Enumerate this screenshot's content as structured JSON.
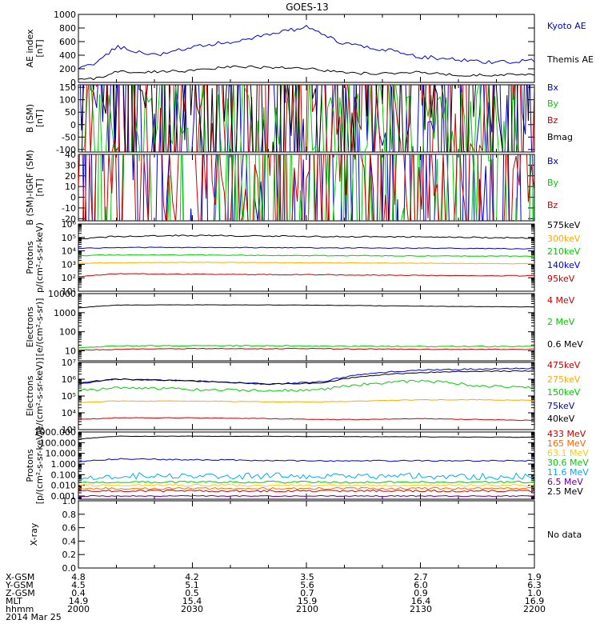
{
  "title": "GOES-13",
  "date_label": "2014 Mar 25",
  "orbit_table": {
    "row_labels": [
      "X-GSM",
      "Y-GSM",
      "Z-GSM",
      "MLT",
      "hhmm"
    ],
    "columns": [
      [
        "4.8",
        "4.5",
        "0.4",
        "14.9",
        "2000"
      ],
      [
        "4.2",
        "5.1",
        "0.5",
        "15.4",
        "2030"
      ],
      [
        "3.5",
        "5.6",
        "0.7",
        "15.9",
        "2100"
      ],
      [
        "2.7",
        "6.0",
        "0.9",
        "16.4",
        "2130"
      ],
      [
        "1.9",
        "6.3",
        "1.0",
        "16.9",
        "2200"
      ]
    ]
  },
  "chart_data": [
    {
      "type": "line",
      "ylabel": [
        "AE index",
        "[nT]"
      ],
      "scale": "linear",
      "ylim": [
        0,
        1000
      ],
      "yticks": [
        0,
        200,
        400,
        600,
        800,
        1000
      ],
      "ytick_labels": [
        "0",
        "200",
        "400",
        "600",
        "800",
        "1000"
      ],
      "x": [
        0,
        5,
        10,
        20,
        30,
        40,
        60,
        70,
        80,
        90,
        100,
        110,
        120
      ],
      "series": [
        {
          "name": "Kyoto AE",
          "color": "#0000cc",
          "noise": 0.03,
          "values": [
            190,
            300,
            530,
            400,
            520,
            600,
            810,
            560,
            490,
            380,
            330,
            290,
            320
          ]
        },
        {
          "name": "Themis AE",
          "color": "#000000",
          "noise": 0.02,
          "values": [
            40,
            60,
            150,
            160,
            170,
            230,
            210,
            140,
            130,
            150,
            100,
            110,
            110
          ]
        }
      ]
    },
    {
      "type": "line",
      "ylabel": [
        "B (SM)",
        "[nT]"
      ],
      "scale": "linear",
      "ylim": [
        -110,
        160
      ],
      "yticks": [
        -100,
        -50,
        0,
        50,
        100,
        150
      ],
      "ytick_labels": [
        "-100",
        "-50",
        "0",
        "50",
        "100",
        "150"
      ],
      "x": [
        0,
        4,
        10,
        30,
        60,
        90,
        120
      ],
      "series": [
        {
          "name": "Bx",
          "color": "#0000cc",
          "noise": 2,
          "values": [
            -40,
            -30,
            -28,
            -22,
            -18,
            -10,
            -5
          ]
        },
        {
          "name": "By",
          "color": "#00cc00",
          "noise": 1,
          "values": [
            -55,
            -50,
            -50,
            -50,
            -52,
            -53,
            -55
          ]
        },
        {
          "name": "Bz",
          "color": "#cc0000",
          "noise": 2,
          "values": [
            100,
            130,
            120,
            120,
            118,
            112,
            108
          ]
        },
        {
          "name": "Bmag",
          "color": "#000000",
          "noise": 2,
          "values": [
            115,
            140,
            135,
            135,
            135,
            128,
            122
          ]
        }
      ]
    },
    {
      "type": "line",
      "ylabel": [
        "B (SM)-IGRF (SM)",
        "[nT]"
      ],
      "scale": "linear",
      "ylim": [
        -22,
        40
      ],
      "yticks": [
        -20,
        -10,
        0,
        10,
        20,
        30,
        40
      ],
      "ytick_labels": [
        "-20",
        "-10",
        "0",
        "10",
        "20",
        "30",
        "40"
      ],
      "x": [
        0,
        3,
        6,
        15,
        30,
        45,
        60,
        75,
        90,
        95,
        105,
        120
      ],
      "series": [
        {
          "name": "Bx",
          "color": "#0000cc",
          "noise": 3,
          "values": [
            -2,
            10,
            5,
            3,
            5,
            6,
            8,
            8,
            8,
            12,
            5,
            5
          ]
        },
        {
          "name": "By",
          "color": "#00cc00",
          "noise": 2.5,
          "values": [
            -8,
            0,
            -5,
            -8,
            -5,
            -3,
            0,
            -2,
            0,
            -2,
            -4,
            -3
          ]
        },
        {
          "name": "Bz",
          "color": "#cc0000",
          "noise": 1.5,
          "values": [
            15,
            28,
            35,
            28,
            27,
            26,
            30,
            30,
            25,
            15,
            12,
            12
          ]
        }
      ]
    },
    {
      "type": "line",
      "ylabel": [
        "Protons",
        "p/(cm²-s-sr-keV)"
      ],
      "scale": "log",
      "ylim": [
        10,
        1000000
      ],
      "yticks": [
        10,
        100,
        1000,
        10000,
        100000,
        1000000
      ],
      "ytick_labels": [
        "10¹",
        "10²",
        "10³",
        "10⁴",
        "10⁵",
        "10⁶"
      ],
      "x": [
        0,
        10,
        30,
        60,
        90,
        120
      ],
      "series": [
        {
          "name": "575keV",
          "color": "#000000",
          "noise": 0.05,
          "values": [
            70000,
            120000,
            140000,
            120000,
            110000,
            90000
          ]
        },
        {
          "name": "300keV",
          "color": "#ffaa00",
          "noise": 0.02,
          "values": [
            1200,
            1300,
            1400,
            1300,
            1200,
            1100
          ]
        },
        {
          "name": "210keV",
          "color": "#00cc00",
          "noise": 0.03,
          "values": [
            4500,
            5000,
            5000,
            4500,
            4300,
            4000
          ]
        },
        {
          "name": "140keV",
          "color": "#0000cc",
          "noise": 0.03,
          "values": [
            15000,
            18000,
            18000,
            17000,
            16000,
            14000
          ]
        },
        {
          "name": "95keV",
          "color": "#cc0000",
          "noise": 0.03,
          "values": [
            120,
            200,
            180,
            170,
            150,
            140
          ]
        }
      ]
    },
    {
      "type": "line",
      "ylabel": [
        "Electrons",
        "[e/(cm²-s-sr)]"
      ],
      "scale": "log",
      "ylim": [
        3,
        10000
      ],
      "yticks": [
        10,
        100,
        1000,
        10000
      ],
      "ytick_labels": [
        "10",
        "100",
        "1000",
        "10000"
      ],
      "x": [
        0,
        10,
        30,
        60,
        90,
        120
      ],
      "series": [
        {
          "name": "4 MeV",
          "color": "#cc0000",
          "noise": 0.02,
          "values": [
            11,
            12,
            13,
            13,
            12,
            12
          ]
        },
        {
          "name": "2 MeV",
          "color": "#00cc00",
          "noise": 0.03,
          "values": [
            15,
            18,
            19,
            18,
            17,
            17
          ]
        },
        {
          "name": "0.6 MeV",
          "color": "#000000",
          "noise": 0.01,
          "values": [
            1800,
            2500,
            2600,
            2500,
            2200,
            2000
          ]
        }
      ]
    },
    {
      "type": "line",
      "ylabel": [
        "Electrons",
        "[e/(cm²-s-sr-keV)]"
      ],
      "scale": "log",
      "ylim": [
        1000,
        10000000
      ],
      "yticks": [
        1000,
        10000,
        100000,
        1000000,
        10000000
      ],
      "ytick_labels": [
        "10³",
        "10⁴",
        "10⁵",
        "10⁶",
        "10⁷"
      ],
      "x": [
        0,
        10,
        30,
        50,
        65,
        75,
        90,
        105,
        120
      ],
      "series": [
        {
          "name": "475keV",
          "color": "#cc0000",
          "noise": 0.02,
          "values": [
            4000,
            5000,
            5000,
            4500,
            4000,
            4000,
            4500,
            4000,
            3500
          ]
        },
        {
          "name": "275keV",
          "color": "#ffaa00",
          "noise": 0.02,
          "values": [
            40000,
            50000,
            50000,
            45000,
            45000,
            50000,
            60000,
            60000,
            55000
          ]
        },
        {
          "name": "150keV",
          "color": "#00cc00",
          "noise": 0.08,
          "values": [
            200000,
            300000,
            250000,
            200000,
            250000,
            500000,
            800000,
            400000,
            300000
          ]
        },
        {
          "name": "75keV",
          "color": "#0000cc",
          "noise": 0.04,
          "values": [
            500000,
            1000000,
            800000,
            500000,
            700000,
            2000000,
            3500000,
            4000000,
            4500000
          ]
        },
        {
          "name": "40keV",
          "color": "#000000",
          "noise": 0.03,
          "values": [
            600000,
            1000000,
            800000,
            500000,
            600000,
            1500000,
            2500000,
            3000000,
            3000000
          ]
        }
      ]
    },
    {
      "type": "line",
      "ylabel": [
        "Protons",
        "[p/(cm²-s-sr-keV)]"
      ],
      "scale": "log",
      "ylim": [
        0.0005,
        1000
      ],
      "yticks": [
        0.001,
        0.01,
        0.1,
        1,
        10,
        100,
        1000
      ],
      "ytick_labels": [
        "0.001",
        "0.010",
        "0.100",
        "1.000",
        "10.000",
        "100.000",
        "1000.000"
      ],
      "x": [
        0,
        10,
        30,
        60,
        90,
        120
      ],
      "series": [
        {
          "name": "433 MeV",
          "color": "#cc0000",
          "noise": 0.1,
          "values": [
            0.003,
            0.003,
            0.003,
            0.003,
            0.003,
            0.003
          ]
        },
        {
          "name": "165 MeV",
          "color": "#ff6600",
          "noise": 0.1,
          "values": [
            0.005,
            0.005,
            0.005,
            0.005,
            0.005,
            0.005
          ]
        },
        {
          "name": "63.1 MeV",
          "color": "#ffcc00",
          "noise": 0.1,
          "values": [
            0.01,
            0.01,
            0.01,
            0.01,
            0.01,
            0.01
          ]
        },
        {
          "name": "30.6 MeV",
          "color": "#00cc00",
          "noise": 0.1,
          "values": [
            0.02,
            0.02,
            0.02,
            0.02,
            0.02,
            0.02
          ]
        },
        {
          "name": "11.6 MeV",
          "color": "#00aaff",
          "noise": 0.3,
          "values": [
            0.06,
            0.08,
            0.07,
            0.08,
            0.07,
            0.07
          ]
        },
        {
          "name": "6.5 MeV",
          "color": "#660099",
          "noise": 0.05,
          "values": [
            0.001,
            0.001,
            0.001,
            0.001,
            0.001,
            0.001
          ]
        },
        {
          "name": "2.5 MeV",
          "color": "#000000",
          "noise": 0.02,
          "values": [
            200,
            400,
            400,
            380,
            350,
            320
          ]
        },
        {
          "name": "",
          "color": "#0000cc",
          "noise": 0.06,
          "values": [
            1.5,
            3,
            2.5,
            2,
            2,
            2
          ]
        }
      ]
    },
    {
      "type": "line",
      "ylabel": [
        "X-ray"
      ],
      "scale": "linear",
      "ylim": [
        0,
        1
      ],
      "yticks": [
        0,
        0.2,
        0.4,
        0.6,
        0.8,
        1.0
      ],
      "ytick_labels": [
        "0.0",
        "0.2",
        "0.4",
        "0.6",
        "0.8",
        "1.0"
      ],
      "x": [],
      "series": [],
      "note": "No data"
    }
  ]
}
